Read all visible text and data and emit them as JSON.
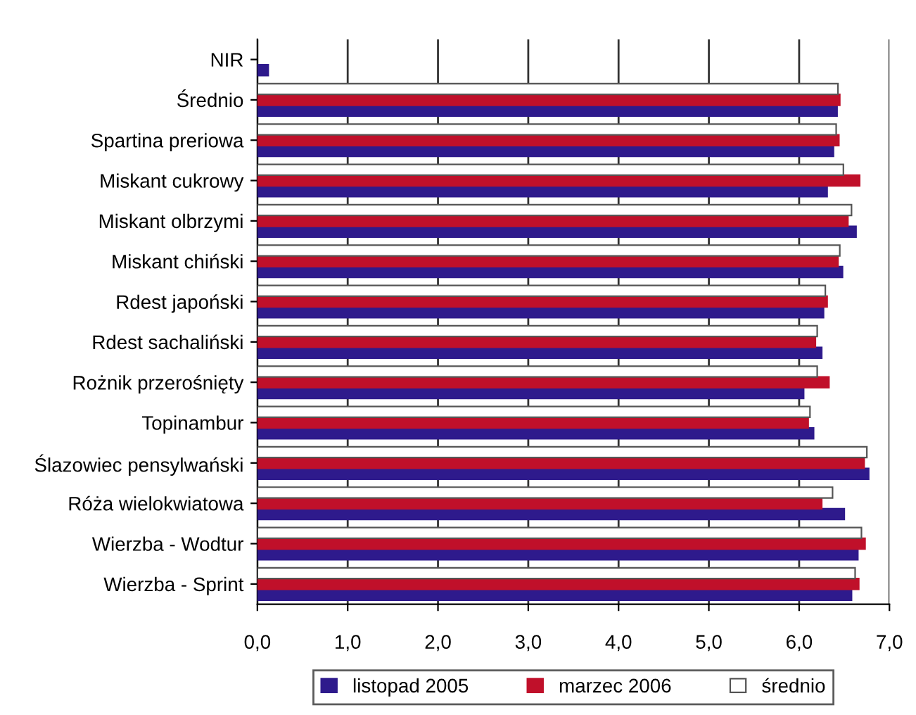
{
  "chart_data": {
    "type": "bar",
    "orientation": "horizontal",
    "categories": [
      "NIR",
      "Średnio",
      "Spartina preriowa",
      "Miskant cukrowy",
      "Miskant olbrzymi",
      "Miskant chiński",
      "Rdest japoński",
      "Rdest sachaliński",
      "Rożnik przerośnięty",
      "Topinambur",
      "Ślazowiec pensylwański",
      "Róża wielokwiatowa",
      "Wierzba - Wodtur",
      "Wierzba - Sprint"
    ],
    "series": [
      {
        "name": "listopad 2005",
        "color": "#2e1a8c",
        "values": [
          0.12,
          6.42,
          6.38,
          6.31,
          6.63,
          6.48,
          6.27,
          6.25,
          6.05,
          6.16,
          6.77,
          6.5,
          6.65,
          6.58
        ]
      },
      {
        "name": "marzec 2006",
        "color": "#c0102a",
        "values": [
          null,
          6.45,
          6.44,
          6.67,
          6.54,
          6.43,
          6.31,
          6.18,
          6.33,
          6.1,
          6.72,
          6.25,
          6.73,
          6.66
        ]
      },
      {
        "name": "średnio",
        "color": "#ffffff",
        "values": [
          null,
          6.43,
          6.41,
          6.49,
          6.58,
          6.45,
          6.29,
          6.2,
          6.2,
          6.12,
          6.75,
          6.37,
          6.69,
          6.62
        ]
      }
    ],
    "xlim": [
      0,
      7
    ],
    "xticks": [
      {
        "value": 0,
        "label": "0,0"
      },
      {
        "value": 1,
        "label": "1,0"
      },
      {
        "value": 2,
        "label": "2,0"
      },
      {
        "value": 3,
        "label": "3,0"
      },
      {
        "value": 4,
        "label": "4,0"
      },
      {
        "value": 5,
        "label": "5,0"
      },
      {
        "value": 6,
        "label": "6,0"
      },
      {
        "value": 7,
        "label": "7,0"
      }
    ],
    "grid": "x",
    "legend": "bottom"
  }
}
